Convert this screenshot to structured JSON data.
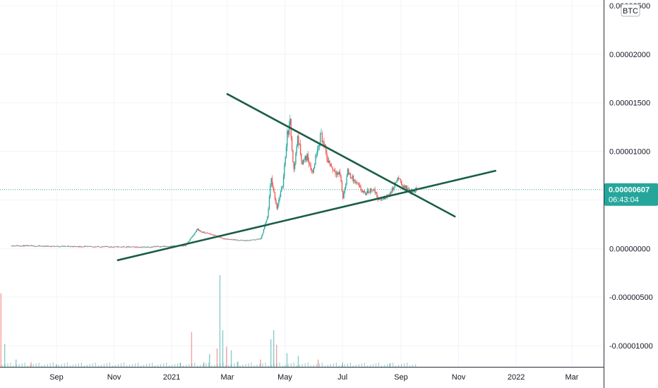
{
  "chart_data": {
    "type": "candlestick",
    "currency": "BTC",
    "x_axis_labels": [
      "Sep",
      "Nov",
      "2021",
      "Mar",
      "May",
      "Jul",
      "Sep",
      "Nov",
      "2022",
      "Mar"
    ],
    "y_axis_labels": [
      "0.00002500",
      "0.00002000",
      "0.00001500",
      "0.00001000",
      "0.00000500",
      "0.00000000",
      "-0.00000500",
      "-0.00001000"
    ],
    "ylim": [
      -1.25e-05,
      2.62e-05
    ],
    "grid": true,
    "last_price": "0.00000607",
    "countdown": "06:43:04",
    "colors": {
      "up": "#26a69a",
      "down": "#ef5350",
      "trendline": "#1b5e47",
      "badge": "#26a69a",
      "grid": "#f0f3fa"
    },
    "price_series": [
      {
        "date": "2020-07-15",
        "close": 3e-07
      },
      {
        "date": "2020-08-15",
        "close": 2.5e-07
      },
      {
        "date": "2020-10-01",
        "close": 2e-07
      },
      {
        "date": "2020-12-01",
        "close": 1.5e-07
      },
      {
        "date": "2021-01-15",
        "close": 3e-07
      },
      {
        "date": "2021-01-28",
        "close": 2e-06
      },
      {
        "date": "2021-02-01",
        "close": 1.7e-06
      },
      {
        "date": "2021-02-10",
        "close": 1.5e-06
      },
      {
        "date": "2021-02-25",
        "close": 1e-06
      },
      {
        "date": "2021-03-20",
        "close": 8e-07
      },
      {
        "date": "2021-04-05",
        "close": 1e-06
      },
      {
        "date": "2021-04-12",
        "close": 3.2e-06
      },
      {
        "date": "2021-04-16",
        "close": 7.2e-06
      },
      {
        "date": "2021-04-22",
        "close": 4.2e-06
      },
      {
        "date": "2021-04-28",
        "close": 6.5e-06
      },
      {
        "date": "2021-05-03",
        "close": 1.18e-05
      },
      {
        "date": "2021-05-06",
        "close": 1.29e-05
      },
      {
        "date": "2021-05-10",
        "close": 8e-06
      },
      {
        "date": "2021-05-14",
        "close": 1.15e-05
      },
      {
        "date": "2021-05-19",
        "close": 8.8e-06
      },
      {
        "date": "2021-05-24",
        "close": 9.5e-06
      },
      {
        "date": "2021-05-30",
        "close": 7.8e-06
      },
      {
        "date": "2021-06-04",
        "close": 1.05e-05
      },
      {
        "date": "2021-06-08",
        "close": 1.18e-05
      },
      {
        "date": "2021-06-14",
        "close": 9.3e-06
      },
      {
        "date": "2021-06-20",
        "close": 8.2e-06
      },
      {
        "date": "2021-06-28",
        "close": 7.6e-06
      },
      {
        "date": "2021-07-01",
        "close": 5.2e-06
      },
      {
        "date": "2021-07-06",
        "close": 7.9e-06
      },
      {
        "date": "2021-07-14",
        "close": 6.8e-06
      },
      {
        "date": "2021-07-24",
        "close": 5.6e-06
      },
      {
        "date": "2021-08-02",
        "close": 6.2e-06
      },
      {
        "date": "2021-08-08",
        "close": 5e-06
      },
      {
        "date": "2021-08-15",
        "close": 5.2e-06
      },
      {
        "date": "2021-08-22",
        "close": 6e-06
      },
      {
        "date": "2021-08-28",
        "close": 7.2e-06
      },
      {
        "date": "2021-09-03",
        "close": 6.4e-06
      },
      {
        "date": "2021-09-10",
        "close": 5.9e-06
      },
      {
        "date": "2021-09-17",
        "close": 6.07e-06
      }
    ],
    "volume": [
      {
        "date": "2020-07-04",
        "value": 0.8
      },
      {
        "date": "2020-07-08",
        "value": 0.25
      },
      {
        "date": "2020-07-20",
        "value": 0.08
      },
      {
        "date": "2020-08-05",
        "value": 0.05
      },
      {
        "date": "2020-09-01",
        "value": 0.03
      },
      {
        "date": "2021-01-10",
        "value": 0.04
      },
      {
        "date": "2021-01-22",
        "value": 0.38
      },
      {
        "date": "2021-02-04",
        "value": 0.05
      },
      {
        "date": "2021-02-10",
        "value": 0.14
      },
      {
        "date": "2021-02-18",
        "value": 0.2
      },
      {
        "date": "2021-02-21",
        "value": 1.0
      },
      {
        "date": "2021-02-24",
        "value": 0.4
      },
      {
        "date": "2021-02-28",
        "value": 0.22
      },
      {
        "date": "2021-03-05",
        "value": 0.18
      },
      {
        "date": "2021-03-12",
        "value": 0.06
      },
      {
        "date": "2021-04-05",
        "value": 0.08
      },
      {
        "date": "2021-04-16",
        "value": 0.3
      },
      {
        "date": "2021-04-19",
        "value": 0.4
      },
      {
        "date": "2021-04-22",
        "value": 0.24
      },
      {
        "date": "2021-05-03",
        "value": 0.15
      },
      {
        "date": "2021-05-15",
        "value": 0.12
      },
      {
        "date": "2021-06-05",
        "value": 0.08
      },
      {
        "date": "2021-07-01",
        "value": 0.05
      },
      {
        "date": "2021-08-20",
        "value": 0.04
      }
    ],
    "trendlines": [
      {
        "start": {
          "date": "2021-03-01",
          "price": 1.59e-05
        },
        "end": {
          "date": "2021-10-28",
          "price": 3.3e-06
        }
      },
      {
        "start": {
          "date": "2020-11-05",
          "price": -1.2e-06
        },
        "end": {
          "date": "2021-12-10",
          "price": 8e-06
        }
      }
    ]
  }
}
